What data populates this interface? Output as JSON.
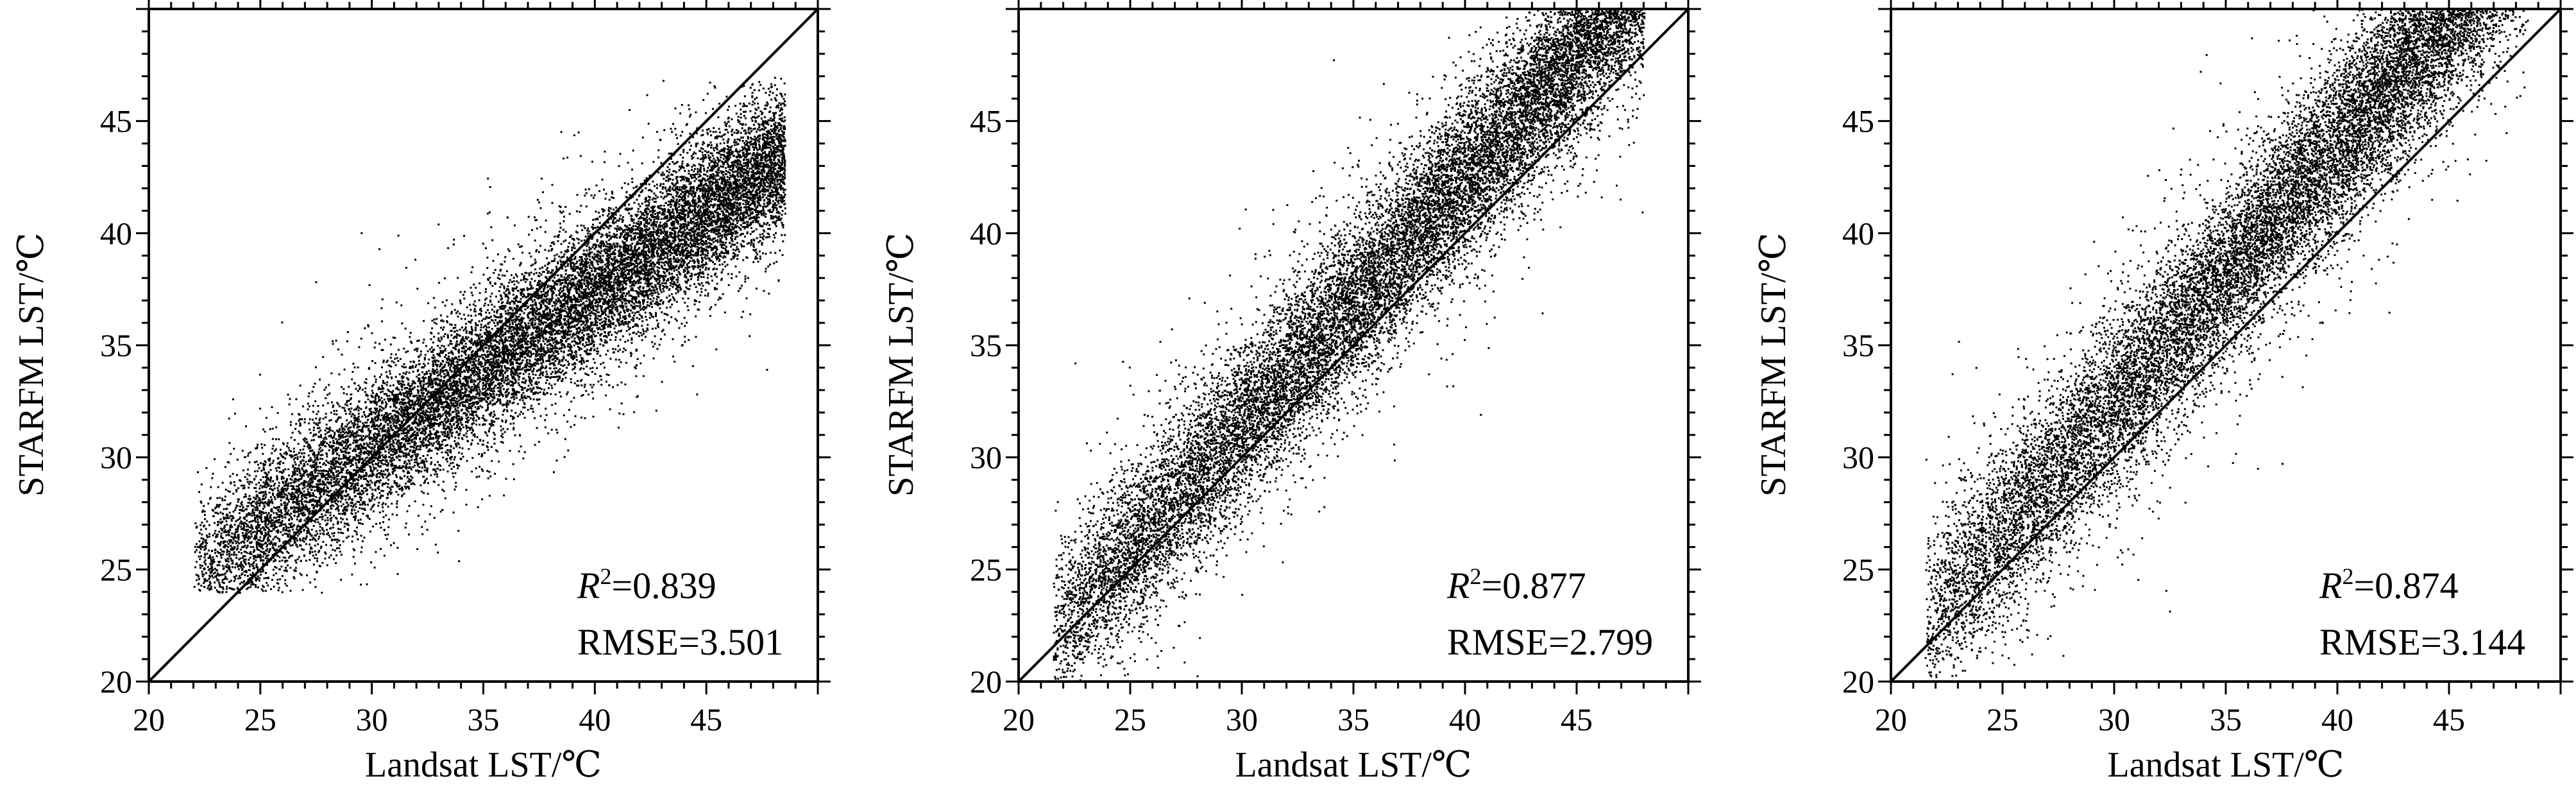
{
  "figure": {
    "background": "#ffffff",
    "point_color": "#000000"
  },
  "chart_data": [
    {
      "type": "scatter",
      "xlabel": "Landsat LST/℃",
      "ylabel": "STARFM LST/℃",
      "xlim": [
        20,
        50
      ],
      "ylim": [
        20,
        50
      ],
      "xticks": [
        20,
        25,
        30,
        35,
        40,
        45
      ],
      "yticks": [
        20,
        25,
        30,
        35,
        40,
        45
      ],
      "grid": false,
      "reference_line": "1:1",
      "stats": {
        "r2_label": "R",
        "r2_sup": "2",
        "r2_value": "=0.839",
        "rmse": "RMSE=3.501"
      },
      "point_cloud": {
        "x_range": [
          22,
          48.5
        ],
        "trend": {
          "slope": 0.7,
          "intercept": 9.5
        },
        "spread_sd": 1.6,
        "y_clip": [
          24,
          47
        ]
      }
    },
    {
      "type": "scatter",
      "xlabel": "Landsat LST/℃",
      "ylabel": "STARFM LST/℃",
      "xlim": [
        20,
        50
      ],
      "ylim": [
        20,
        50
      ],
      "xticks": [
        20,
        25,
        30,
        35,
        40,
        45
      ],
      "yticks": [
        20,
        25,
        30,
        35,
        40,
        45
      ],
      "grid": false,
      "reference_line": "1:1",
      "stats": {
        "r2_label": "R",
        "r2_sup": "2",
        "r2_value": "=0.877",
        "rmse": "RMSE=2.799"
      },
      "point_cloud": {
        "x_range": [
          21.5,
          48
        ],
        "trend": {
          "slope": 1.1,
          "intercept": -1.5
        },
        "spread_sd": 1.8,
        "y_clip": [
          20,
          50
        ]
      }
    },
    {
      "type": "scatter",
      "xlabel": "Landsat LST/℃",
      "ylabel": "STARFM LST/℃",
      "xlim": [
        20,
        50
      ],
      "ylim": [
        20,
        50
      ],
      "xticks": [
        20,
        25,
        30,
        35,
        40,
        45
      ],
      "yticks": [
        20,
        25,
        30,
        35,
        40,
        45
      ],
      "grid": false,
      "reference_line": "1:1",
      "stats": {
        "r2_label": "R",
        "r2_sup": "2",
        "r2_value": "=0.874",
        "rmse": "RMSE=3.144"
      },
      "point_cloud": {
        "x_range": [
          21.5,
          48.5
        ],
        "trend": {
          "slope": 1.15,
          "intercept": -2.0
        },
        "spread_sd": 1.9,
        "y_clip": [
          20,
          50
        ]
      }
    }
  ]
}
